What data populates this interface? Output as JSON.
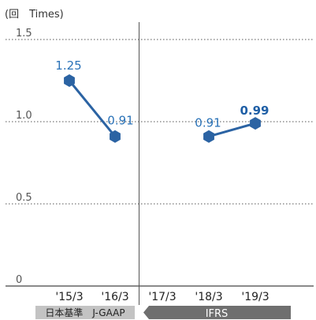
{
  "chart_data": {
    "type": "line",
    "unit_label": "(回　Times)",
    "ylim": [
      0,
      1.5
    ],
    "yticks": [
      0,
      0.5,
      1.0,
      1.5
    ],
    "ytick_labels": [
      "0",
      "0.5",
      "1.0",
      "1.5"
    ],
    "grid": true,
    "categories": [
      "'15/3",
      "'16/3",
      "'17/3",
      "'18/3",
      "'19/3"
    ],
    "series": [
      {
        "segment": "J-GAAP",
        "points": [
          {
            "x": "'15/3",
            "y": 1.25,
            "label": "1.25",
            "bold": false
          },
          {
            "x": "'16/3",
            "y": 0.91,
            "label": "0.91",
            "bold": false
          }
        ]
      },
      {
        "segment": "IFRS",
        "points": [
          {
            "x": "'18/3",
            "y": 0.91,
            "label": "0.91",
            "bold": false
          },
          {
            "x": "'19/3",
            "y": 0.99,
            "label": "0.99",
            "bold": true
          }
        ]
      }
    ],
    "standards": [
      {
        "name": "日本基準　J-GAAP",
        "from": "'15/3",
        "to": "'16/3"
      },
      {
        "name": "IFRS",
        "from": "'17/3",
        "to": "'19/3"
      }
    ],
    "colors": {
      "line": "#2b63a3",
      "label": "#2b73b8",
      "label_bold": "#1f5fa6",
      "jgaap_band": "#c3c3c3",
      "ifrs_band": "#6f6f6f",
      "grid": "#555555"
    }
  }
}
